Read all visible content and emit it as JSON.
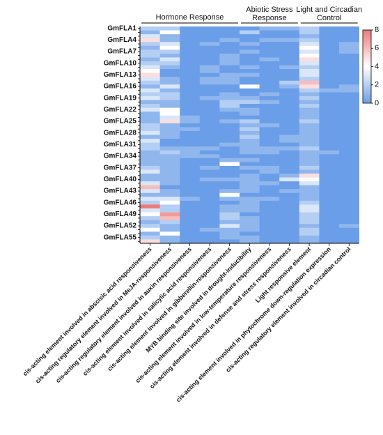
{
  "chart_data": {
    "type": "heatmap",
    "groups": [
      {
        "label": "Hormone Response",
        "columns": [
          0,
          4
        ]
      },
      {
        "label_lines": [
          "Abiotic Stress",
          "Response"
        ],
        "columns": [
          5,
          7
        ]
      },
      {
        "label_lines": [
          "Light and Circadian",
          "Control"
        ],
        "columns": [
          8,
          10
        ]
      }
    ],
    "columns": [
      "cis-acting element involved in abscisic acid responsiveness",
      "cis-acting regulatory element involved in MeJA-responsiveness",
      "cis-acting regulatory element involved in auxin responsiveness",
      "cis-acting element involved in salicylic acid responsiveness",
      "cis-acting element involved in gibberellin-responsiveness",
      "MYB binding site involved in drought-inducibility",
      "cis-acting element involved in low-temperature responsiveness",
      "cis-acting element involved in defense and stress responsiveness",
      "Light responsive element",
      "cis-acting element involved in phytochrome down-regulation expression",
      "cis-acting regulatory element involved in circadian control"
    ],
    "row_count": 56,
    "row_labels_shown": [
      "GmFLA1",
      "GmFLA4",
      "GmFLA7",
      "GmFLA10",
      "GmFLA13",
      "GmFLA16",
      "GmFLA19",
      "GmFLA22",
      "GmFLA25",
      "GmFLA28",
      "GmFLA31",
      "GmFLA34",
      "GmFLA37",
      "GmFLA40",
      "GmFLA43",
      "GmFLA46",
      "GmFLA49",
      "GmFLA52",
      "GmFLA55"
    ],
    "values": [
      [
        2,
        2,
        0,
        0,
        0,
        0,
        1,
        1,
        2,
        0,
        0
      ],
      [
        1,
        4,
        0,
        0,
        0,
        2,
        0,
        0,
        2,
        0,
        0
      ],
      [
        3,
        1,
        0,
        0,
        0,
        0,
        0,
        0,
        1,
        0,
        0
      ],
      [
        5,
        1,
        0,
        0,
        1,
        0,
        1,
        1,
        2,
        0,
        0
      ],
      [
        2,
        3,
        0,
        1,
        0,
        1,
        0,
        0,
        3,
        0,
        1
      ],
      [
        1,
        4,
        0,
        0,
        0,
        0,
        0,
        0,
        4,
        0,
        1
      ],
      [
        2,
        2,
        0,
        0,
        0,
        1,
        0,
        0,
        3,
        0,
        1
      ],
      [
        2,
        1,
        0,
        0,
        1,
        0,
        0,
        0,
        4,
        0,
        0
      ],
      [
        1,
        3,
        0,
        0,
        1,
        0,
        1,
        0,
        5,
        0,
        0
      ],
      [
        2,
        2,
        0,
        0,
        1,
        0,
        0,
        0,
        3,
        0,
        0
      ],
      [
        3,
        1,
        0,
        1,
        0,
        1,
        0,
        1,
        2,
        0,
        0
      ],
      [
        4,
        0,
        0,
        1,
        0,
        0,
        0,
        0,
        3,
        0,
        0
      ],
      [
        5,
        0,
        0,
        0,
        1,
        1,
        0,
        0,
        3,
        0,
        0
      ],
      [
        3,
        1,
        0,
        1,
        1,
        0,
        0,
        0,
        2,
        0,
        0
      ],
      [
        2,
        1,
        0,
        1,
        1,
        0,
        0,
        2,
        6,
        0,
        0
      ],
      [
        1,
        3,
        0,
        0,
        0,
        4,
        0,
        1,
        5,
        0,
        1
      ],
      [
        3,
        1,
        0,
        0,
        0,
        0,
        0,
        0,
        2,
        1,
        1
      ],
      [
        2,
        2,
        0,
        0,
        1,
        0,
        1,
        0,
        1,
        0,
        0
      ],
      [
        3,
        2,
        0,
        1,
        1,
        1,
        0,
        0,
        2,
        0,
        0
      ],
      [
        1,
        1,
        0,
        0,
        2,
        2,
        1,
        0,
        1,
        0,
        0
      ],
      [
        2,
        1,
        0,
        0,
        2,
        0,
        0,
        0,
        2,
        0,
        0
      ],
      [
        3,
        4,
        0,
        0,
        1,
        1,
        0,
        0,
        1,
        0,
        0
      ],
      [
        1,
        4,
        0,
        0,
        0,
        1,
        0,
        0,
        1,
        0,
        0
      ],
      [
        1,
        3,
        1,
        0,
        0,
        0,
        0,
        0,
        1,
        0,
        0
      ],
      [
        1,
        5,
        1,
        0,
        1,
        2,
        0,
        0,
        2,
        0,
        0
      ],
      [
        2,
        1,
        0,
        0,
        0,
        1,
        1,
        0,
        1,
        0,
        0
      ],
      [
        2,
        1,
        1,
        0,
        0,
        2,
        0,
        0,
        1,
        0,
        0
      ],
      [
        3,
        1,
        0,
        0,
        0,
        1,
        0,
        0,
        1,
        0,
        0
      ],
      [
        1,
        1,
        0,
        0,
        0,
        2,
        0,
        1,
        1,
        0,
        0
      ],
      [
        3,
        0,
        0,
        0,
        0,
        1,
        0,
        1,
        1,
        0,
        0
      ],
      [
        2,
        0,
        0,
        0,
        1,
        1,
        0,
        0,
        1,
        0,
        0
      ],
      [
        2,
        1,
        1,
        1,
        0,
        1,
        1,
        1,
        2,
        0,
        0
      ],
      [
        1,
        2,
        1,
        0,
        0,
        1,
        1,
        0,
        1,
        1,
        0
      ],
      [
        1,
        1,
        1,
        1,
        0,
        0,
        0,
        0,
        1,
        0,
        0
      ],
      [
        1,
        1,
        0,
        0,
        1,
        1,
        0,
        0,
        1,
        0,
        0
      ],
      [
        1,
        1,
        0,
        0,
        4,
        0,
        0,
        0,
        1,
        0,
        0
      ],
      [
        2,
        1,
        0,
        1,
        0,
        1,
        1,
        0,
        2,
        0,
        0
      ],
      [
        3,
        1,
        0,
        0,
        0,
        0,
        1,
        0,
        1,
        0,
        0
      ],
      [
        1,
        1,
        0,
        0,
        0,
        1,
        0,
        1,
        5,
        0,
        0
      ],
      [
        1,
        1,
        0,
        1,
        1,
        1,
        0,
        3,
        4,
        0,
        0
      ],
      [
        3,
        1,
        0,
        0,
        0,
        1,
        1,
        0,
        3,
        0,
        0
      ],
      [
        6,
        0,
        0,
        0,
        0,
        1,
        0,
        0,
        1,
        0,
        0
      ],
      [
        3,
        1,
        0,
        0,
        1,
        1,
        0,
        1,
        1,
        0,
        0
      ],
      [
        1,
        1,
        0,
        0,
        4,
        0,
        0,
        0,
        1,
        0,
        0
      ],
      [
        3,
        3,
        1,
        0,
        1,
        1,
        1,
        0,
        1,
        0,
        0
      ],
      [
        2,
        4,
        0,
        0,
        0,
        1,
        0,
        0,
        2,
        0,
        0
      ],
      [
        8,
        2,
        0,
        0,
        1,
        1,
        0,
        0,
        3,
        0,
        0
      ],
      [
        3,
        2,
        0,
        0,
        1,
        1,
        0,
        0,
        3,
        0,
        0
      ],
      [
        4,
        7,
        0,
        0,
        2,
        0,
        0,
        0,
        2,
        0,
        0
      ],
      [
        2,
        6,
        0,
        0,
        2,
        1,
        0,
        0,
        2,
        0,
        0
      ],
      [
        1,
        2,
        0,
        0,
        1,
        1,
        0,
        0,
        2,
        0,
        0
      ],
      [
        2,
        1,
        0,
        0,
        3,
        1,
        0,
        0,
        1,
        0,
        1
      ],
      [
        4,
        1,
        0,
        1,
        1,
        1,
        0,
        0,
        2,
        0,
        0
      ],
      [
        1,
        4,
        0,
        0,
        1,
        0,
        0,
        0,
        2,
        0,
        0
      ],
      [
        2,
        1,
        0,
        0,
        1,
        1,
        0,
        0,
        1,
        0,
        0
      ],
      [
        5,
        1,
        0,
        0,
        0,
        1,
        0,
        0,
        1,
        0,
        0
      ]
    ],
    "colorbar": {
      "min": 0,
      "max": 8,
      "ticks": [
        "0",
        "2",
        "4",
        "6",
        "8"
      ],
      "low_color": "#6b9ee8",
      "mid_color": "#ffffff",
      "high_color": "#ef7a7a"
    }
  }
}
